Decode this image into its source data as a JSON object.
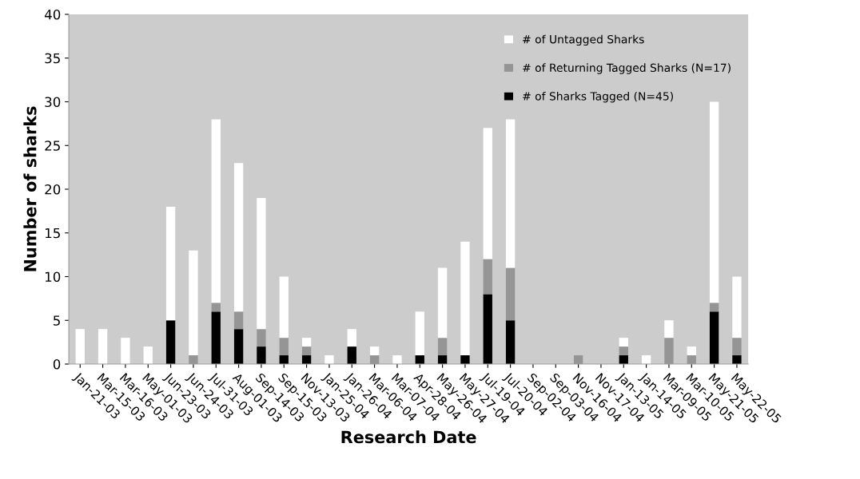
{
  "chart_data": {
    "type": "bar",
    "stacked": true,
    "xlabel": "Research Date",
    "ylabel": "Number of sharks",
    "categories": [
      "Jan-21-03",
      "Mar-15-03",
      "Mar-16-03",
      "May-01-03",
      "Jun-23-03",
      "Jun-24-03",
      "Jul-31-03",
      "Aug-01-03",
      "Sep-14-03",
      "Sep-15-03",
      "Nov-13-03",
      "Jan-25-04",
      "Jan-26-04",
      "Mar-06-04",
      "Mar-07-04",
      "Apr-28-04",
      "May-26-04",
      "May-27-04",
      "Jul-19-04",
      "Jul-20-04",
      "Sep-02-04",
      "Sep-03-04",
      "Nov-16-04",
      "Nov-17-04",
      "Jan-13-05",
      "Jan-14-05",
      "Mar-09-05",
      "Mar-10-05",
      "May-21-05",
      "May-22-05"
    ],
    "series": [
      {
        "name": "# of Sharks Tagged (N=45)",
        "color": "#000000",
        "values": [
          0,
          0,
          0,
          0,
          5,
          0,
          6,
          4,
          2,
          1,
          1,
          0,
          2,
          0,
          0,
          1,
          1,
          1,
          8,
          5,
          0,
          0,
          0,
          0,
          1,
          0,
          0,
          0,
          6,
          1
        ]
      },
      {
        "name": "# of Returning Tagged Sharks (N=17)",
        "color": "#959595",
        "values": [
          0,
          0,
          0,
          0,
          0,
          1,
          1,
          2,
          2,
          2,
          1,
          0,
          0,
          1,
          0,
          0,
          2,
          0,
          4,
          6,
          0,
          0,
          1,
          0,
          1,
          0,
          3,
          1,
          1,
          2
        ]
      },
      {
        "name": "# of Untagged Sharks",
        "color": "#ffffff",
        "values": [
          4,
          4,
          3,
          2,
          13,
          12,
          21,
          17,
          15,
          7,
          1,
          1,
          2,
          1,
          1,
          5,
          8,
          13,
          15,
          17,
          0,
          0,
          0,
          0,
          1,
          1,
          2,
          1,
          23,
          7
        ]
      }
    ],
    "ylim": [
      0,
      40
    ],
    "yticks": [
      0,
      5,
      10,
      15,
      20,
      25,
      30,
      35,
      40
    ],
    "grid": false,
    "legend": "top right"
  }
}
